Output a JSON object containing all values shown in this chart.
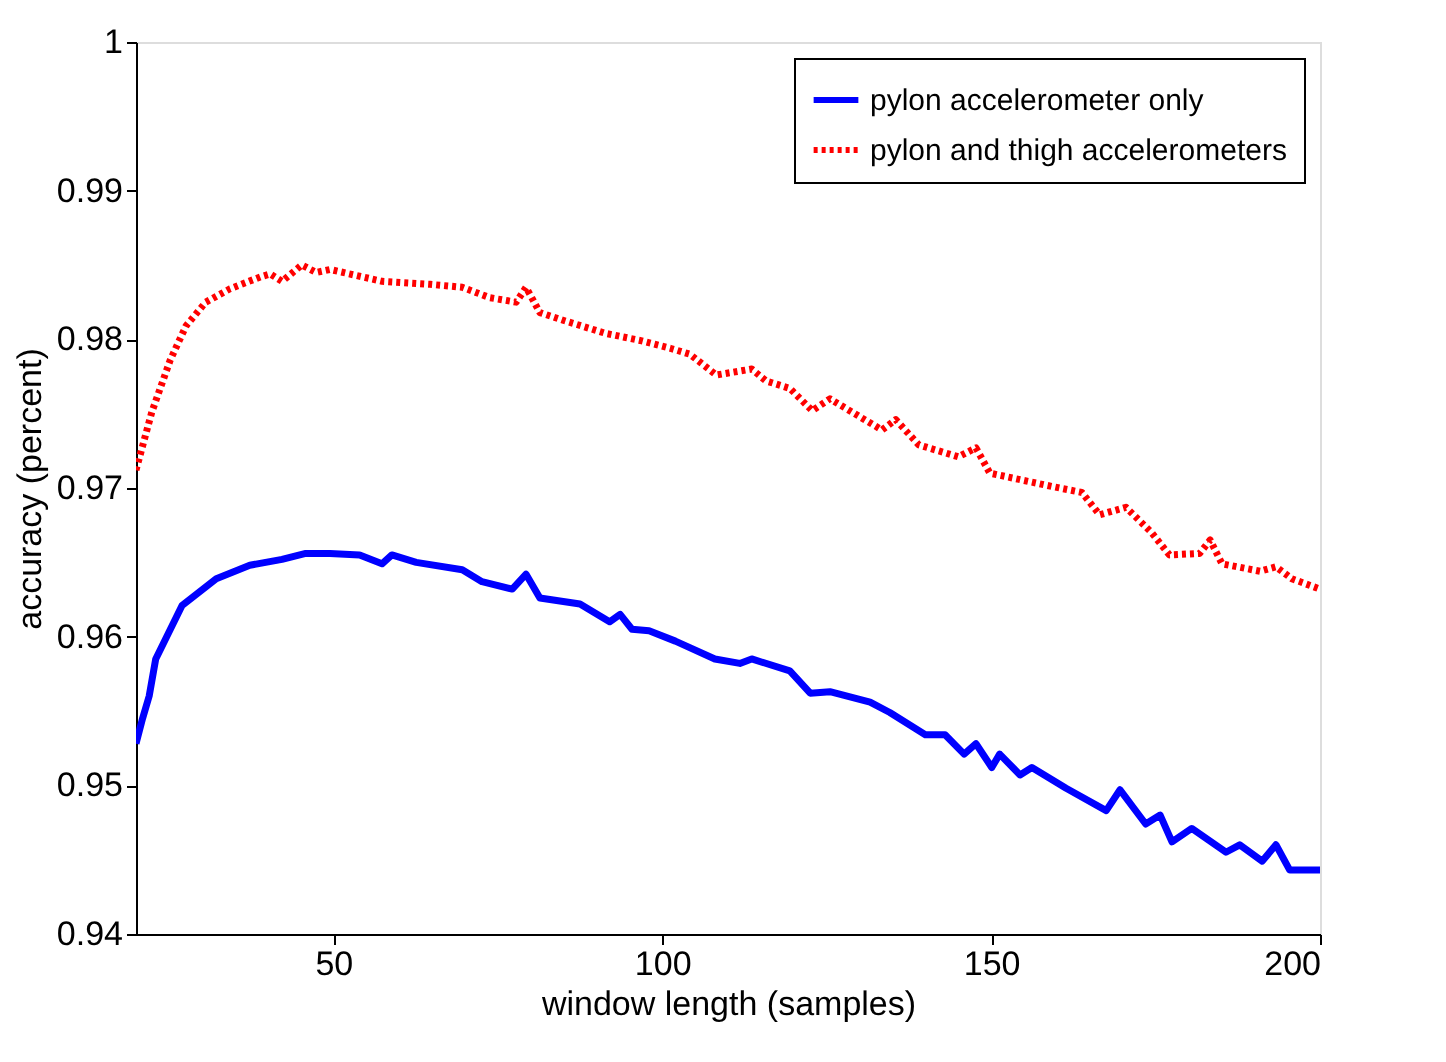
{
  "chart_data": {
    "type": "line",
    "xlabel": "window length (samples)",
    "ylabel": "accuracy (percent)",
    "xlim": [
      20,
      200
    ],
    "xticks": [
      50,
      100,
      150,
      200
    ],
    "ylim": [
      0.94,
      1
    ],
    "yticks": [
      0.94,
      0.95,
      0.96,
      0.97,
      0.98,
      0.99,
      1
    ],
    "grid": false,
    "legend": "top right",
    "series": [
      {
        "name": "pylon accelerometer only",
        "color": "#0000ff",
        "line_style": "solid",
        "x": [
          20,
          21,
          22,
          23,
          27,
          32.2,
          37.3,
          42.2,
          45.8,
          49.5,
          54,
          57.4,
          58.9,
          62.6,
          69.6,
          72.6,
          77.2,
          79.3,
          81.4,
          87.5,
          92,
          93.6,
          95.4,
          98,
          102,
          108,
          111.8,
          113.6,
          119.4,
          122.5,
          125.5,
          131.6,
          134.6,
          140,
          143,
          145.9,
          147.7,
          150.1,
          151.3,
          154.4,
          156.2,
          161.4,
          167.5,
          169.6,
          173.5,
          175.7,
          177.5,
          180.5,
          185.7,
          187.8,
          191.2,
          193.3,
          195.4,
          200
        ],
        "values": [
          0.9528,
          0.9545,
          0.956,
          0.9585,
          0.9621,
          0.9639,
          0.9648,
          0.9652,
          0.9656,
          0.9656,
          0.9655,
          0.9649,
          0.9655,
          0.965,
          0.9645,
          0.9637,
          0.9632,
          0.9642,
          0.9626,
          0.9622,
          0.961,
          0.9615,
          0.9605,
          0.9604,
          0.9597,
          0.9585,
          0.9582,
          0.9585,
          0.9577,
          0.9562,
          0.9563,
          0.9556,
          0.9549,
          0.9534,
          0.9534,
          0.9521,
          0.9528,
          0.9512,
          0.9521,
          0.9507,
          0.9512,
          0.9498,
          0.9483,
          0.9497,
          0.9474,
          0.948,
          0.9462,
          0.9471,
          0.9455,
          0.946,
          0.9449,
          0.946,
          0.9443,
          0.9443
        ]
      },
      {
        "name": "pylon and thigh accelerometers",
        "color": "#ff0000",
        "line_style": "dotted",
        "x": [
          20,
          22.4,
          25.2,
          27.6,
          30.6,
          34.3,
          38.9,
          40.4,
          42.2,
          45.2,
          47.4,
          49.5,
          57.4,
          64.7,
          69.6,
          73.8,
          77.8,
          79.3,
          81.4,
          84.8,
          91.4,
          96.9,
          101.2,
          104.2,
          108.2,
          113.6,
          115.8,
          119.4,
          122.8,
          125.5,
          133.4,
          135.5,
          139,
          145,
          147.7,
          149.8,
          159.3,
          163.8,
          166.5,
          170.5,
          174.4,
          177.1,
          181.7,
          183.3,
          185.1,
          190.9,
          193.3,
          195.7,
          200
        ],
        "values": [
          0.9712,
          0.9751,
          0.9786,
          0.9809,
          0.9825,
          0.9834,
          0.9842,
          0.9844,
          0.9839,
          0.985,
          0.9845,
          0.9847,
          0.9839,
          0.9837,
          0.9835,
          0.9828,
          0.9825,
          0.9835,
          0.9818,
          0.9813,
          0.9804,
          0.9799,
          0.9794,
          0.979,
          0.9776,
          0.978,
          0.9772,
          0.9767,
          0.9752,
          0.976,
          0.9739,
          0.9746,
          0.9729,
          0.9721,
          0.9727,
          0.971,
          0.9701,
          0.9697,
          0.9682,
          0.9687,
          0.967,
          0.9655,
          0.9656,
          0.9665,
          0.9649,
          0.9644,
          0.9647,
          0.9639,
          0.9632
        ]
      }
    ]
  }
}
